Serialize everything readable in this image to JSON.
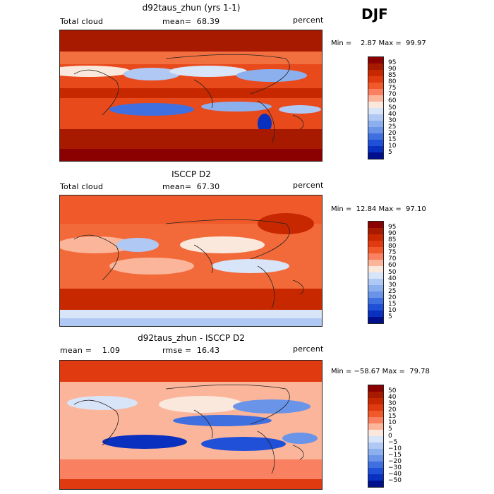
{
  "season": "DJF",
  "panels": [
    {
      "id": "model",
      "title": "d92taus_zhun (yrs 1-1)",
      "variable": "Total cloud",
      "stat_label": "mean=  68.39",
      "units": "percent",
      "minmax": "Min =    2.87 Max =  99.97"
    },
    {
      "id": "obs",
      "title": "ISCCP D2",
      "variable": "Total cloud",
      "stat_label": "mean=  67.30",
      "units": "percent",
      "minmax": "Min =  12.84 Max =  97.10"
    },
    {
      "id": "diff",
      "title": "d92taus_zhun - ISCCP D2",
      "stat_left": "mean =    1.09",
      "stat_right": "rmse =  16.43",
      "units": "percent",
      "minmax": "Min = −58.67 Max =  79.78"
    }
  ],
  "colorbar_abs": {
    "levels": [
      "95",
      "90",
      "85",
      "80",
      "75",
      "70",
      "60",
      "50",
      "40",
      "30",
      "25",
      "20",
      "15",
      "10",
      "5"
    ],
    "colors": [
      "#8b0000",
      "#a81a00",
      "#c82800",
      "#e03a10",
      "#f05a2a",
      "#f98060",
      "#fbb59a",
      "#fbe8dc",
      "#d8e4f8",
      "#b0c8f4",
      "#8cb0ee",
      "#6a94e8",
      "#4070e0",
      "#2050d8",
      "#0a30c0",
      "#00108c"
    ]
  },
  "colorbar_diff": {
    "levels": [
      "50",
      "40",
      "30",
      "20",
      "15",
      "10",
      "5",
      "0",
      "−5",
      "−10",
      "−15",
      "−20",
      "−30",
      "−40",
      "−50"
    ],
    "colors": [
      "#8b0000",
      "#a81a00",
      "#c82800",
      "#e03a10",
      "#f05a2a",
      "#f98060",
      "#fbb59a",
      "#fbe8dc",
      "#d8e4f8",
      "#b0c8f4",
      "#8cb0ee",
      "#6a94e8",
      "#4070e0",
      "#2050d8",
      "#0a30c0",
      "#00108c"
    ]
  },
  "chart_data": [
    {
      "type": "heatmap",
      "title": "d92taus_zhun (yrs 1-1)",
      "variable": "Total cloud",
      "units": "percent",
      "mean": 68.39,
      "min": 2.87,
      "max": 99.97,
      "contour_levels": [
        5,
        10,
        15,
        20,
        25,
        30,
        40,
        50,
        60,
        70,
        75,
        80,
        85,
        90,
        95
      ]
    },
    {
      "type": "heatmap",
      "title": "ISCCP D2",
      "variable": "Total cloud",
      "units": "percent",
      "mean": 67.3,
      "min": 12.84,
      "max": 97.1,
      "contour_levels": [
        5,
        10,
        15,
        20,
        25,
        30,
        40,
        50,
        60,
        70,
        75,
        80,
        85,
        90,
        95
      ]
    },
    {
      "type": "heatmap",
      "title": "d92taus_zhun - ISCCP D2",
      "units": "percent",
      "mean": 1.09,
      "rmse": 16.43,
      "min": -58.67,
      "max": 79.78,
      "contour_levels": [
        -50,
        -40,
        -30,
        -20,
        -15,
        -10,
        -5,
        0,
        5,
        10,
        15,
        20,
        30,
        40,
        50
      ]
    }
  ]
}
